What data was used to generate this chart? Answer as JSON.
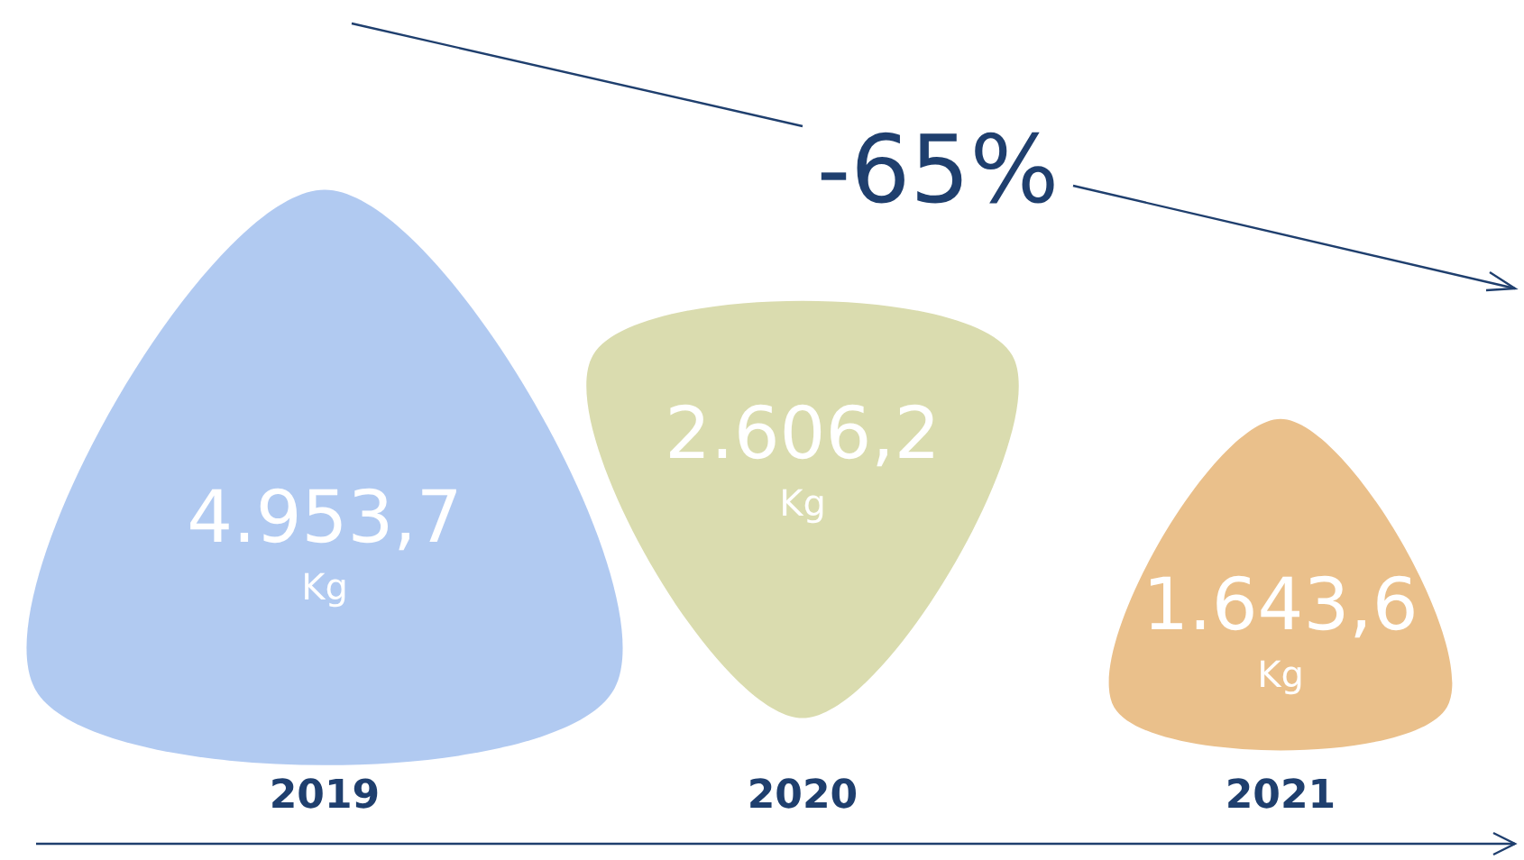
{
  "chart_data": {
    "type": "other",
    "categories": [
      "2019",
      "2020",
      "2021"
    ],
    "values": [
      4953.7,
      2606.2,
      1643.6
    ],
    "value_labels": [
      "4.953,7",
      "2.606,2",
      "1.643,6"
    ],
    "ylabel": "Kg",
    "colors": [
      "#a9c4f0",
      "#d6d8a6",
      "#e8b97e"
    ],
    "annotations": [
      "-65%"
    ]
  }
}
